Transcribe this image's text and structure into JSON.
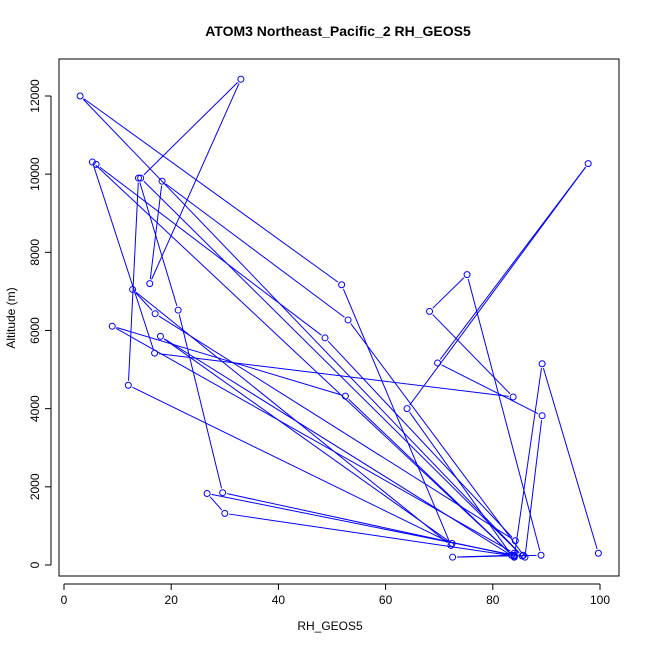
{
  "chart_data": {
    "type": "line",
    "title": "ATOM3 Northeast_Pacific_2 RH_GEOS5",
    "xlabel": "RH_GEOS5",
    "ylabel": "Altitude (m)",
    "xlim": [
      0,
      100
    ],
    "ylim": [
      0,
      12000
    ],
    "x_ticks": [
      0,
      20,
      40,
      60,
      80,
      100
    ],
    "y_ticks": [
      0,
      2000,
      4000,
      6000,
      8000,
      10000,
      12000
    ],
    "series_color": "#0000ff",
    "x": [
      99.7,
      89.2,
      84.0,
      52.5,
      9.0,
      84.0,
      85.7,
      84.0,
      30.0,
      26.7,
      84.0,
      72.5,
      89.0,
      75.2,
      68.2,
      83.8,
      16.9,
      5.3,
      84.0,
      18.0,
      72.4,
      12.0,
      13.9,
      21.3,
      29.6,
      83.5,
      64.0,
      97.8,
      69.7,
      89.2,
      86.0,
      53.0,
      18.3,
      16.0,
      33.0,
      14.3,
      85.5,
      3.0,
      51.8,
      72.2,
      12.8,
      17.0,
      84.2,
      48.7,
      6.0
    ],
    "y": [
      300,
      5150,
      200,
      4320,
      6110,
      300,
      250,
      230,
      1320,
      1830,
      250,
      200,
      250,
      7430,
      6490,
      4300,
      5420,
      10310,
      200,
      5850,
      550,
      4600,
      9900,
      6520,
      1850,
      250,
      4000,
      10270,
      5170,
      3820,
      200,
      6270,
      9820,
      7200,
      12430,
      9900,
      230,
      12000,
      7170,
      500,
      7050,
      6430,
      620,
      5810,
      10250
    ]
  }
}
